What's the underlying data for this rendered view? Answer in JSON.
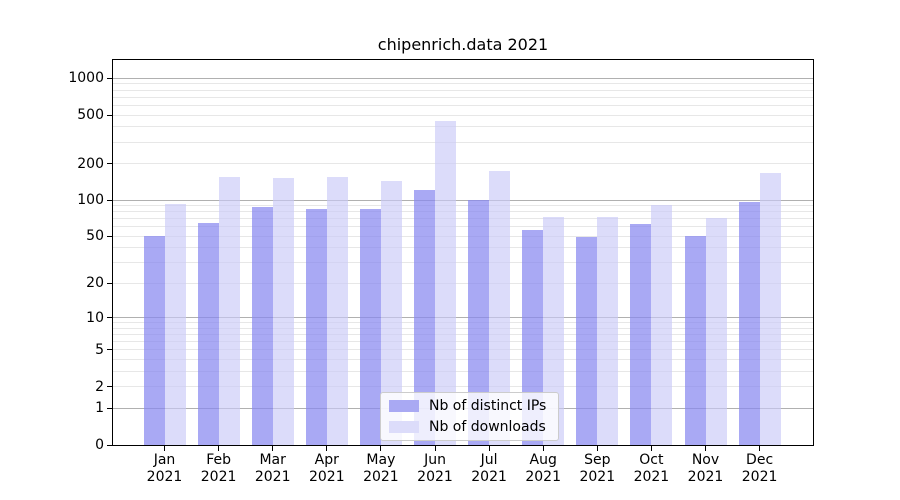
{
  "chart_title": "chipenrich.data 2021",
  "legend": {
    "items": [
      {
        "label": "Nb of distinct IPs",
        "swatch_color": "#a9a9f3",
        "bar_color": "rgba(136,136,240,0.72)"
      },
      {
        "label": "Nb of downloads",
        "swatch_color": "#dcdcfa",
        "bar_color": "rgba(201,201,248,0.65)"
      }
    ],
    "position": "lower center"
  },
  "chart_data": {
    "type": "bar",
    "title": "chipenrich.data 2021",
    "x_tick_months": [
      "Jan",
      "Feb",
      "Mar",
      "Apr",
      "May",
      "Jun",
      "Jul",
      "Aug",
      "Sep",
      "Oct",
      "Nov",
      "Dec"
    ],
    "x_tick_year": "2021",
    "y_ticks": [
      0,
      1,
      2,
      5,
      10,
      20,
      50,
      100,
      200,
      500,
      1000
    ],
    "y_scale": "log10(1+value)",
    "ylim": [
      0,
      1360
    ],
    "grid": {
      "horizontal": true,
      "major_color": "#b0b0b0",
      "minor_color": "#e7e7e7"
    },
    "series": [
      {
        "name": "Nb of distinct IPs",
        "values": [
          50,
          65,
          87,
          84,
          85,
          120,
          100,
          56,
          49,
          63,
          50,
          96
        ]
      },
      {
        "name": "Nb of downloads",
        "values": [
          93,
          154,
          151,
          155,
          144,
          450,
          174,
          73,
          72,
          91,
          71,
          168
        ]
      }
    ]
  }
}
